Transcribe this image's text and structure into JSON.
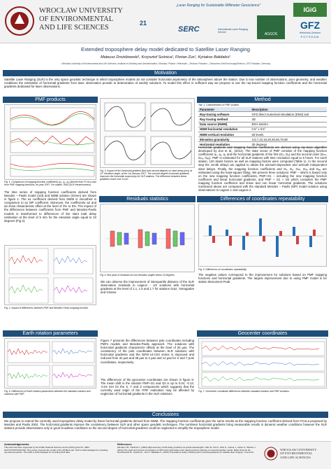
{
  "header": {
    "university": [
      "WROCŁAW UNIVERSITY",
      "OF ENVIRONMENTAL",
      "AND LIFE SCIENCES"
    ],
    "tagline": "„Laser Ranging for Sustainable Millimeter Geoscience”",
    "logos": [
      "21",
      "SERC",
      "International Laser Ranging Service",
      "IGiG",
      "AGGOS",
      "GFZ",
      "Helmholtz-Zentrum",
      "POTSDAM"
    ]
  },
  "title": "Extended troposphere delay model dedicated to Satellite Laser Ranging",
  "authors": "Mateusz Drożdżewski¹, Krzysztof Sośnica¹, Florian Zus², Kyriakos Balidakis²",
  "affiliations": "¹ Wrocław University of Environmental and Life Sciences, Institute of Geodesy and Geoinformatics, Wrocław, Poland   ² Helmholtz – Zentrum Potsdam – Deutsches GeoForschungsZentrum, GFZ Potsdam, Germany",
  "motivation": {
    "heading": "Motivation",
    "text": "Satellite Laser Ranging (SLR) is the only space geodetic technique in which troposphere models do not consider horizontal asymmetry of the atmosphere above the station. Due to low number of observations, poor geometry, and weather conditions the estimation of horizontal gradients from laser observation provide to deterioration of weekly solutions. To model this effect in sufficient way we propose to use the ray-traced mapping function coefficients and the horizontal gradients dedicated for laser observations."
  },
  "pmf": {
    "heading": "PMF products",
    "caption": "Fig. 1. Comparison of mapping function coefficients (a₀, a₁, a₂) derived from FCULa and from PMF mapping functions, for year 2007. For station 7840 (SLR Herstmonceux).",
    "text": "The time series of mapping function coefficients derived from Mendes – Pavlis model (red) and NWM solution (Green) are shown in figure 1. The a1 coefficient derived from NWM is smoothed in comparison to a1 MP coefficient. Moreover, the coefficients a2 and a3 show characteristic offset at the level of 3% to 6%. The impact of the differences between coefficients from PMF and Mendes-Pavlis models is transformed to differences of the slant total delay estimation at the level of 5 mm for the elevation angle equal to 10 degrees (Fig 2).",
    "caption2": "Fig. 2. Impact of differences between PMF and Mendes-Pavlis mapping function."
  },
  "figure_middle": {
    "caption": "Fig. 3. Impact of the horizontal gradient (first and second degree) on slant delay (mm) at 10° elevation angle, at the 1st January 2007. The second-degree horizontal gradients improves the horizontal asymmetry for SLR stations. The difference between linear gradients reach over 5 mm."
  },
  "method": {
    "heading": "Method",
    "table_caption": "Tab. 1. Characteristics of PMF solution",
    "table_header": [
      "Parameter",
      "description"
    ],
    "rows": [
      [
        "Ray-tracing software",
        "GFZ direct numerical simulation (DNS) tool"
      ],
      [
        "Ray tracing method",
        "2D"
      ],
      [
        "Data source (NWM)",
        "ERA-Interim"
      ],
      [
        "NWM horizontal resolution",
        "0.5° x 0.5°"
      ],
      [
        "NWM vertical resolution",
        "60 levels"
      ],
      [
        "Elevation granularity",
        "3,5,7,10,15,20,30,50,70,90"
      ],
      [
        "Horizontal resolution",
        "30 degrees"
      ]
    ],
    "text": "Horizontal gradients and mapping function coefficients are derived using ray-trace algorithm developed by Zus et al., (2014). The state vector of PMF consists of the mapping function coefficients a₀, a₁, a₂ and the horizontal gradients of the first (Gₙ, Gₑ) and the second order (Gₙₙ, Gₙₑ, Gₑₑ). PMF is estimated for all SLR stations with time resolution equal to 6 hours. For each station, 120 slants factors as well as mapping factors were computed (Table 1). In the second step the zenith delays are applied to obtain the azimuth-dependent and azimuth independent slant delays. Finally, the mapping function coefficients and Gₙ, Gₑ, Gₙₙ, Gₙₑ and Gₑₑ are estimated using the least-square fitting. We present three solutions: PMF – which is based only on the new mapping function coefficients, PMF+O1 – including the new mapping function coefficient and linear horizontal gradients, and PMF + O1 + O2 which considers the PMF mapping function coefficient and linear and non linear horizontal gradients. The solutions mentioned above are compared with the standard Mendes – Pavlis (MP) model solution using observations to Lageos 1 and Lageos 2."
  },
  "residuals": {
    "heading": "Residuals statistics",
    "caption": "Fig. 4. Box plots of residuals for low elevation angles below 15 degrees.",
    "text": "We can observe the improvement of interquartile distance of the SLR observation residuals to Lageos - 1/2 solutions with horizontal gradients at the level of 1.1, 1.5 and 1.7 for stations Graz, Yarragadee and Grasse."
  },
  "differences": {
    "heading": "Differences of coordinates repeatability",
    "caption": "Fig. 5. Differences of coordinates repeatability.",
    "text": "The negative values correspond to the improvement for solutions based on PMF mapping functions and horizontal gradients. The largest improvement due to using PMF model is for station Monument Peak."
  },
  "earth_rotation": {
    "heading": "Earth rotation parameters",
    "caption": "Fig. 6. Differences of Earth rotation parameters between the standard solution and solutions with PMF.",
    "text": "Figure 7 presents the differences between pole coordinates including PMFs models and Mendes-Pavlis approach. The solutions with horizontal gradients characterize offsets at the level of 20 μas. The consistency of the pole coordinates between SLR solutions with horizontal gradients and the IERS-14-C04 series is improved and reduced from 32 μas and 38 μas to 2 μas and 14 μas for X and Y pole coordinates, respectively."
  },
  "geocenter": {
    "heading": "Geocenter coordinates",
    "caption": "Fig. 7. Geocenter coordinate differences between standard solution and PMF solutions.",
    "text": "The differences of the geocenter coordinates are shown in figure 8. The mean shift in the solution PMF+O1 and O2 is up to 0.04, -0.13, -0.04 mm for the X, Y and Z components which suggests that the currently used origin of the ITRF realization may be affected by neglection of horizontal gradients in the SLR solutions."
  },
  "conclusions": {
    "heading": "Conclusions",
    "text": "We propose to extend the currently used troposphere delay model by linear horizontal gradients derived from NWM. The mapping function coefficients give the same results as the mapping function coefficient derived from FCULa proposed by Mendes and Pavlis 2002. The horizontal gradients improve the consistency between SLR and other space geodetic techniques. The nonlinear horizontal gradients bring measurable results in dynamic weather conditions however the SLR stations provide observations only in good cloudless conditions so the second degree of horizontal gradients could be neglected to simplify the troposphere model."
  },
  "footer": {
    "ack_heading": "Acknowledgements",
    "ack_text": "This work has been supported by the Polish National Science Centre (NCN) grant No. UMO-2017/27/N/ST10/01760. This poster presents the results of the WUELS part. GFZ is acknowledged for providing ray-traced products. The ILRS is acknowledged for providing SLR data.",
    "ref_heading": "References",
    "ref_text": "Mendes V.B., Pavlis E.C. (2004) High-accuracy zenith delay prediction at optical wavelengths. GRL 31. Zus F., Dick G., Dousa J., Heise S., Wickert J. (2014) The rapid and precise computation of GPS slant total delays and mapping factors utilizing a numerical weather model. Radio Science 49. Drożdżewski M., Sośnica K., Zus F., Balidakis K. (2019) Troposphere delay modeling with horizontal gradients for satellite laser ranging. J Geod 93.",
    "logo": [
      "WROCŁAW UNIVERSITY",
      "OF ENVIRONMENTAL",
      "AND LIFE SCIENCES"
    ]
  }
}
